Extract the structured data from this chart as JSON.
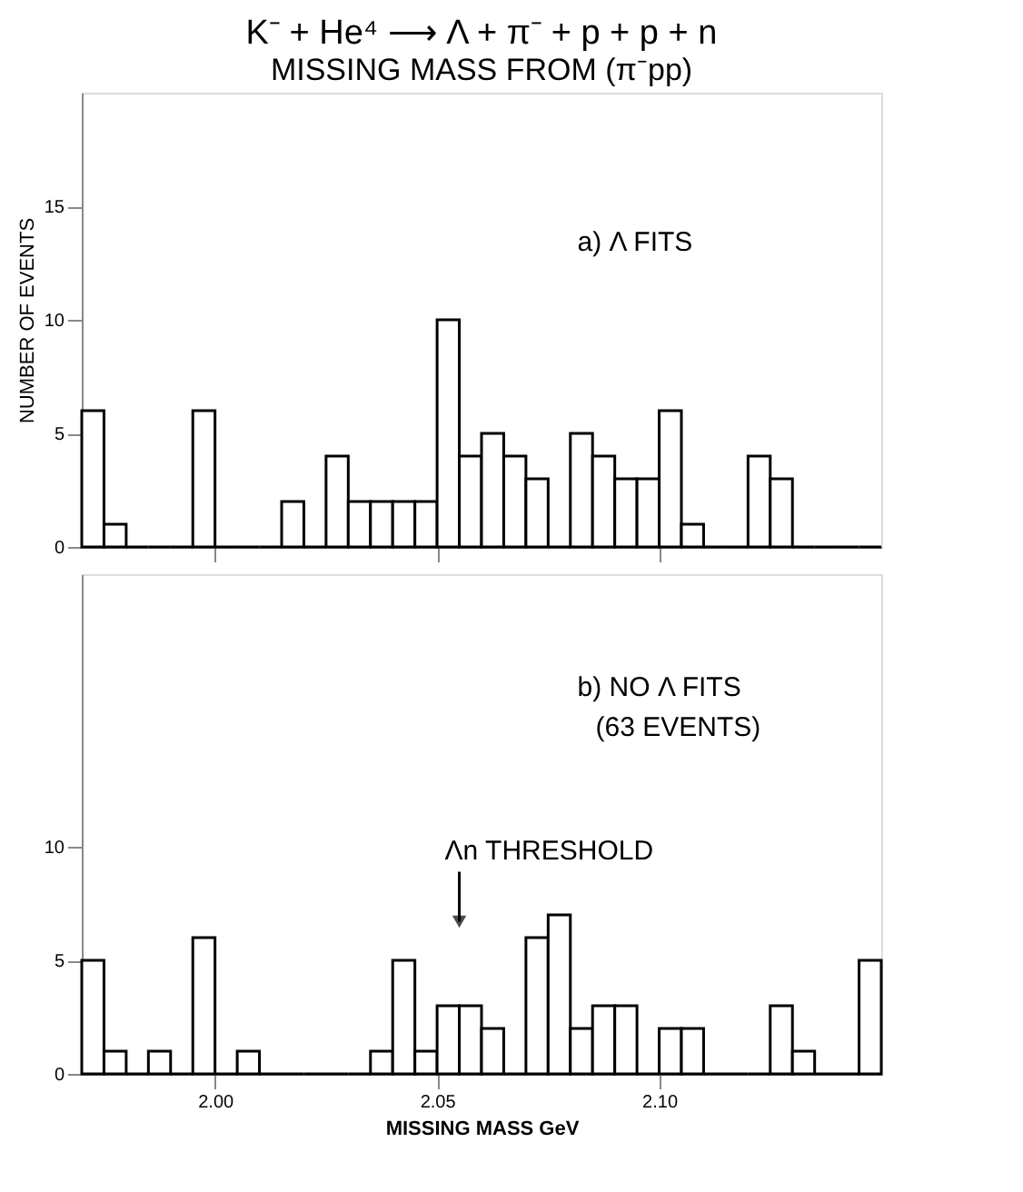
{
  "chart_data": [
    {
      "type": "histogram",
      "title": "K⁻ + He⁴ ⟶ Λ + π⁻ + p + p + n",
      "subtitle": "MISSING MASS FROM (π⁻pp)",
      "ylabel": "NUMBER OF EVENTS",
      "annotations": [
        "a) Λ FITS"
      ],
      "bins": [
        1.97,
        1.975,
        1.98,
        1.985,
        1.99,
        1.995,
        2.0,
        2.005,
        2.01,
        2.015,
        2.02,
        2.025,
        2.03,
        2.035,
        2.04,
        2.045,
        2.05,
        2.055,
        2.06,
        2.065,
        2.07,
        2.075,
        2.08,
        2.085,
        2.09,
        2.095,
        2.1,
        2.105,
        2.11,
        2.115,
        2.12,
        2.125,
        2.13,
        2.135,
        2.14,
        2.145,
        2.15
      ],
      "values": [
        6,
        1,
        0,
        0,
        0,
        6,
        0,
        0,
        0,
        2,
        0,
        4,
        2,
        2,
        2,
        2,
        10,
        4,
        5,
        4,
        3,
        0,
        5,
        4,
        3,
        3,
        6,
        1,
        0,
        0,
        4,
        3,
        0,
        0,
        0,
        0
      ],
      "color": "#000000",
      "xlim": [
        1.97,
        2.15
      ],
      "xticks": [
        {
          "value": 2.0,
          "label": null
        },
        {
          "value": 2.05,
          "label": null
        },
        {
          "value": 2.1,
          "label": null
        }
      ],
      "ylim": [
        0,
        20
      ],
      "yticks": [
        0,
        5,
        10,
        15
      ],
      "tick_labels": "y",
      "grid": false
    },
    {
      "type": "histogram",
      "xlabel": "MISSING MASS GeV",
      "annotations": [
        "b) NO Λ FITS",
        "(63 EVENTS)",
        {
          "text": "Λn THRESHOLD",
          "x": 2.055,
          "y": 6.7
        }
      ],
      "bins": [
        1.97,
        1.975,
        1.98,
        1.985,
        1.99,
        1.995,
        2.0,
        2.005,
        2.01,
        2.015,
        2.02,
        2.025,
        2.03,
        2.035,
        2.04,
        2.045,
        2.05,
        2.055,
        2.06,
        2.065,
        2.07,
        2.075,
        2.08,
        2.085,
        2.09,
        2.095,
        2.1,
        2.105,
        2.11,
        2.115,
        2.12,
        2.125,
        2.13,
        2.135,
        2.14,
        2.145,
        2.15
      ],
      "values": [
        5,
        1,
        0,
        1,
        0,
        6,
        0,
        1,
        0,
        0,
        0,
        0,
        0,
        1,
        5,
        1,
        3,
        3,
        2,
        0,
        6,
        7,
        2,
        3,
        3,
        0,
        2,
        2,
        0,
        0,
        0,
        3,
        1,
        0,
        0,
        5
      ],
      "color": "#000000",
      "xlim": [
        1.97,
        2.15
      ],
      "xticks": [
        {
          "value": 2.0,
          "label": "2.00"
        },
        {
          "value": 2.05,
          "label": "2.05"
        },
        {
          "value": 2.1,
          "label": "2.10"
        }
      ],
      "ylim": [
        0,
        22
      ],
      "yticks": [
        0,
        5,
        10
      ],
      "grid": false
    }
  ]
}
